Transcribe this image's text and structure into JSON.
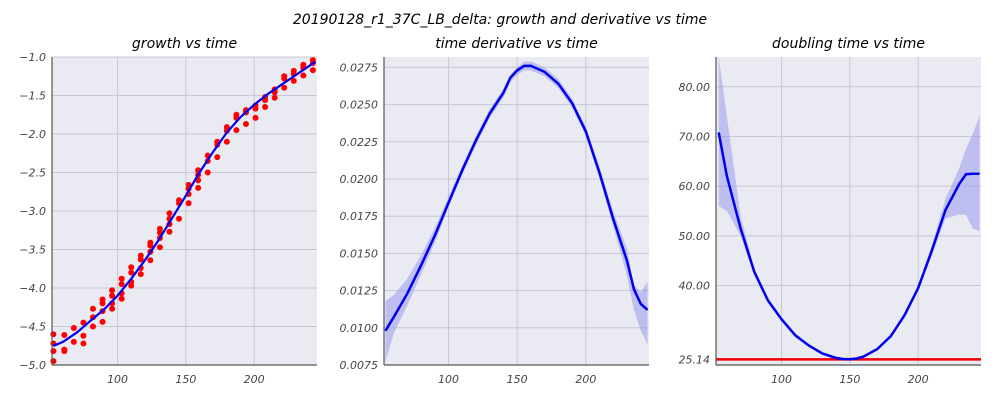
{
  "figure": {
    "suptitle": "20190128_r1_37C_LB_delta: growth and derivative vs time"
  },
  "colors": {
    "bg": "#eaeaf2",
    "grid": "#c8c8d4",
    "line": "#0000ee",
    "band": "#9999ee",
    "points": "#ff0000",
    "hline": "#ee0000",
    "spine": "#555555"
  },
  "chart_data": [
    {
      "type": "scatter",
      "title": "growth vs time",
      "xlim": [
        52,
        246
      ],
      "ylim": [
        -5.0,
        -1.0
      ],
      "xticks": [
        100,
        150,
        200
      ],
      "xticklabels": [
        "100",
        "150",
        "200"
      ],
      "yticks": [
        -1.0,
        -1.5,
        -2.0,
        -2.5,
        -3.0,
        -3.5,
        -4.0,
        -4.5,
        -5.0
      ],
      "yticklabels": [
        "−1.0",
        "−1.5",
        "−2.0",
        "−2.5",
        "−3.0",
        "−3.5",
        "−4.0",
        "−4.5",
        "−5.0"
      ],
      "points": [
        {
          "x": 53,
          "y": -4.6
        },
        {
          "x": 53,
          "y": -4.82
        },
        {
          "x": 53,
          "y": -4.95
        },
        {
          "x": 53,
          "y": -4.72
        },
        {
          "x": 61,
          "y": -4.61
        },
        {
          "x": 61,
          "y": -4.82
        },
        {
          "x": 61,
          "y": -4.8
        },
        {
          "x": 68,
          "y": -4.52
        },
        {
          "x": 68,
          "y": -4.7
        },
        {
          "x": 75,
          "y": -4.45
        },
        {
          "x": 75,
          "y": -4.62
        },
        {
          "x": 75,
          "y": -4.72
        },
        {
          "x": 82,
          "y": -4.27
        },
        {
          "x": 82,
          "y": -4.38
        },
        {
          "x": 82,
          "y": -4.5
        },
        {
          "x": 89,
          "y": -4.15
        },
        {
          "x": 89,
          "y": -4.2
        },
        {
          "x": 89,
          "y": -4.3
        },
        {
          "x": 89,
          "y": -4.44
        },
        {
          "x": 96,
          "y": -4.03
        },
        {
          "x": 96,
          "y": -4.1
        },
        {
          "x": 96,
          "y": -4.2
        },
        {
          "x": 96,
          "y": -4.27
        },
        {
          "x": 103,
          "y": -3.88
        },
        {
          "x": 103,
          "y": -3.95
        },
        {
          "x": 103,
          "y": -4.07
        },
        {
          "x": 103,
          "y": -4.14
        },
        {
          "x": 110,
          "y": -3.73
        },
        {
          "x": 110,
          "y": -3.8
        },
        {
          "x": 110,
          "y": -3.92
        },
        {
          "x": 110,
          "y": -3.97
        },
        {
          "x": 117,
          "y": -3.58
        },
        {
          "x": 117,
          "y": -3.63
        },
        {
          "x": 117,
          "y": -3.74
        },
        {
          "x": 117,
          "y": -3.82
        },
        {
          "x": 124,
          "y": -3.41
        },
        {
          "x": 124,
          "y": -3.45
        },
        {
          "x": 124,
          "y": -3.53
        },
        {
          "x": 124,
          "y": -3.64
        },
        {
          "x": 131,
          "y": -3.23
        },
        {
          "x": 131,
          "y": -3.28
        },
        {
          "x": 131,
          "y": -3.35
        },
        {
          "x": 131,
          "y": -3.47
        },
        {
          "x": 138,
          "y": -3.03
        },
        {
          "x": 138,
          "y": -3.1
        },
        {
          "x": 138,
          "y": -3.17
        },
        {
          "x": 138,
          "y": -3.27
        },
        {
          "x": 145,
          "y": -2.86
        },
        {
          "x": 145,
          "y": -2.9
        },
        {
          "x": 145,
          "y": -3.1
        },
        {
          "x": 152,
          "y": -2.66
        },
        {
          "x": 152,
          "y": -2.71
        },
        {
          "x": 152,
          "y": -2.78
        },
        {
          "x": 152,
          "y": -2.9
        },
        {
          "x": 159,
          "y": -2.47
        },
        {
          "x": 159,
          "y": -2.53
        },
        {
          "x": 159,
          "y": -2.6
        },
        {
          "x": 159,
          "y": -2.7
        },
        {
          "x": 166,
          "y": -2.28
        },
        {
          "x": 166,
          "y": -2.35
        },
        {
          "x": 166,
          "y": -2.5
        },
        {
          "x": 173,
          "y": -2.1
        },
        {
          "x": 173,
          "y": -2.14
        },
        {
          "x": 173,
          "y": -2.3
        },
        {
          "x": 180,
          "y": -1.91
        },
        {
          "x": 180,
          "y": -1.96
        },
        {
          "x": 180,
          "y": -2.1
        },
        {
          "x": 187,
          "y": -1.75
        },
        {
          "x": 187,
          "y": -1.79
        },
        {
          "x": 187,
          "y": -1.95
        },
        {
          "x": 194,
          "y": -1.69
        },
        {
          "x": 194,
          "y": -1.72
        },
        {
          "x": 194,
          "y": -1.87
        },
        {
          "x": 201,
          "y": -1.63
        },
        {
          "x": 201,
          "y": -1.67
        },
        {
          "x": 201,
          "y": -1.79
        },
        {
          "x": 208,
          "y": -1.52
        },
        {
          "x": 208,
          "y": -1.56
        },
        {
          "x": 208,
          "y": -1.65
        },
        {
          "x": 215,
          "y": -1.42
        },
        {
          "x": 215,
          "y": -1.46
        },
        {
          "x": 215,
          "y": -1.53
        },
        {
          "x": 222,
          "y": -1.25
        },
        {
          "x": 222,
          "y": -1.28
        },
        {
          "x": 222,
          "y": -1.4
        },
        {
          "x": 229,
          "y": -1.18
        },
        {
          "x": 229,
          "y": -1.22
        },
        {
          "x": 229,
          "y": -1.31
        },
        {
          "x": 236,
          "y": -1.1
        },
        {
          "x": 236,
          "y": -1.14
        },
        {
          "x": 236,
          "y": -1.24
        },
        {
          "x": 243,
          "y": -1.04
        },
        {
          "x": 243,
          "y": -1.08
        },
        {
          "x": 243,
          "y": -1.17
        }
      ],
      "fit_line": {
        "x": [
          53,
          60,
          70,
          80,
          90,
          100,
          110,
          120,
          130,
          140,
          150,
          160,
          170,
          180,
          190,
          200,
          210,
          220,
          230,
          240,
          245
        ],
        "y": [
          -4.75,
          -4.7,
          -4.58,
          -4.43,
          -4.28,
          -4.1,
          -3.88,
          -3.64,
          -3.38,
          -3.09,
          -2.8,
          -2.5,
          -2.23,
          -1.98,
          -1.78,
          -1.62,
          -1.48,
          -1.36,
          -1.24,
          -1.12,
          -1.06
        ]
      }
    },
    {
      "type": "line",
      "title": "time derivative vs time",
      "xlim": [
        53,
        246
      ],
      "ylim": [
        0.0075,
        0.0282
      ],
      "xticks": [
        100,
        150,
        200
      ],
      "xticklabels": [
        "100",
        "150",
        "200"
      ],
      "yticks": [
        0.0275,
        0.025,
        0.0225,
        0.02,
        0.0175,
        0.015,
        0.0125,
        0.01,
        0.0075
      ],
      "yticklabels": [
        "0.0275",
        "0.0250",
        "0.0225",
        "0.0200",
        "0.0175",
        "0.0150",
        "0.0125",
        "0.0100",
        "0.0075"
      ],
      "x": [
        54,
        60,
        70,
        80,
        90,
        100,
        110,
        120,
        130,
        140,
        145,
        150,
        155,
        160,
        170,
        180,
        190,
        200,
        210,
        220,
        230,
        235,
        240,
        245
      ],
      "y": [
        0.0098,
        0.0107,
        0.0123,
        0.0142,
        0.0162,
        0.0184,
        0.0206,
        0.0226,
        0.0244,
        0.0258,
        0.0268,
        0.0273,
        0.0276,
        0.0276,
        0.0272,
        0.0264,
        0.0251,
        0.0232,
        0.0204,
        0.0173,
        0.0145,
        0.0126,
        0.0116,
        0.0112
      ],
      "band_lower": [
        0.0077,
        0.0096,
        0.0115,
        0.0136,
        0.0157,
        0.0181,
        0.0203,
        0.0223,
        0.0241,
        0.0255,
        0.0265,
        0.027,
        0.0273,
        0.0273,
        0.0269,
        0.0261,
        0.0248,
        0.0229,
        0.02,
        0.0168,
        0.0135,
        0.0112,
        0.0098,
        0.0089
      ],
      "band_upper": [
        0.0118,
        0.0122,
        0.0133,
        0.0149,
        0.0167,
        0.0188,
        0.0209,
        0.0229,
        0.0247,
        0.0261,
        0.027,
        0.0275,
        0.0279,
        0.0279,
        0.0275,
        0.0267,
        0.0254,
        0.0235,
        0.0208,
        0.0178,
        0.0153,
        0.0129,
        0.0124,
        0.0131
      ]
    },
    {
      "type": "line",
      "title": "doubling time vs time",
      "xlim": [
        52,
        246
      ],
      "ylim": [
        24.0,
        86.0
      ],
      "xticks": [
        100,
        150,
        200
      ],
      "xticklabels": [
        "100",
        "150",
        "200"
      ],
      "yticks": [
        80,
        70,
        60,
        50,
        40,
        25.14
      ],
      "yticklabels": [
        "80.00",
        "70.00",
        "60.00",
        "50.00",
        "40.00",
        "25.14"
      ],
      "hline": 25.14,
      "x": [
        54,
        60,
        70,
        80,
        90,
        100,
        110,
        120,
        130,
        140,
        145,
        150,
        155,
        160,
        170,
        180,
        190,
        200,
        210,
        220,
        230,
        235,
        240,
        245
      ],
      "y": [
        70.8,
        62,
        51.5,
        42.8,
        37,
        33.2,
        30,
        27.9,
        26.3,
        25.4,
        25.2,
        25.14,
        25.3,
        25.7,
        27.2,
        29.8,
        34,
        39.5,
        47,
        55.2,
        60.4,
        62.4,
        62.5,
        62.5
      ],
      "band_lower": [
        56,
        55,
        50,
        42,
        36.5,
        32.8,
        29.6,
        27.6,
        26.1,
        25.2,
        25.0,
        24.95,
        25.1,
        25.5,
        27,
        29.5,
        33.5,
        39,
        46,
        53.5,
        54.3,
        54.2,
        51.5,
        50.9
      ],
      "band_upper": [
        86,
        74,
        54,
        43.5,
        37.5,
        33.6,
        30.4,
        28.2,
        26.6,
        25.7,
        25.4,
        25.3,
        25.5,
        25.9,
        27.5,
        30.2,
        34.5,
        40.2,
        48,
        57.5,
        63.5,
        67.5,
        70.5,
        74.2
      ]
    }
  ]
}
